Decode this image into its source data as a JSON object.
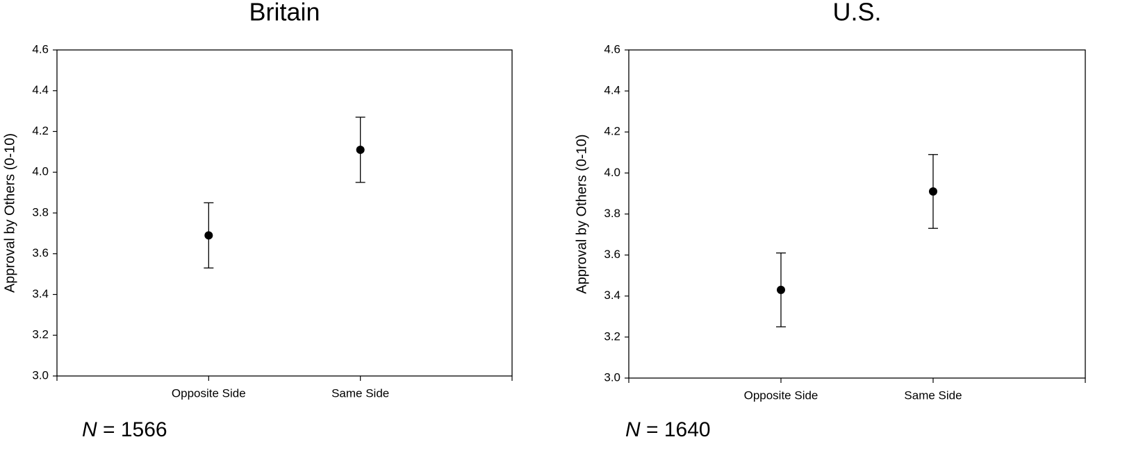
{
  "chart_data": [
    {
      "type": "errorbar",
      "title": "Britain",
      "y_label": "Approval by Others (0-10)",
      "categories": [
        "Opposite Side",
        "Same Side"
      ],
      "values": [
        3.69,
        4.11
      ],
      "errors": [
        0.16,
        0.16
      ],
      "color": "#000000",
      "ylim": [
        3.0,
        4.6
      ],
      "yticks": [
        {
          "value": 3.0,
          "label": "3.0"
        },
        3.2,
        3.4,
        3.6,
        3.8,
        {
          "value": 4.0,
          "label": "4.0"
        },
        4.2,
        4.4,
        4.6
      ],
      "note": "N = 1566"
    },
    {
      "type": "errorbar",
      "title": "U.S.",
      "y_label": "Approval by Others (0-10)",
      "categories": [
        "Opposite Side",
        "Same Side"
      ],
      "values": [
        3.43,
        3.91
      ],
      "errors": [
        0.18,
        0.18
      ],
      "color": "#000000",
      "ylim": [
        3.0,
        4.6
      ],
      "yticks": [
        {
          "value": 3.0,
          "label": "3.0"
        },
        3.2,
        3.4,
        3.6,
        3.8,
        {
          "value": 4.0,
          "label": "4.0"
        },
        4.2,
        4.4,
        4.6
      ],
      "note": "N = 1640"
    }
  ]
}
